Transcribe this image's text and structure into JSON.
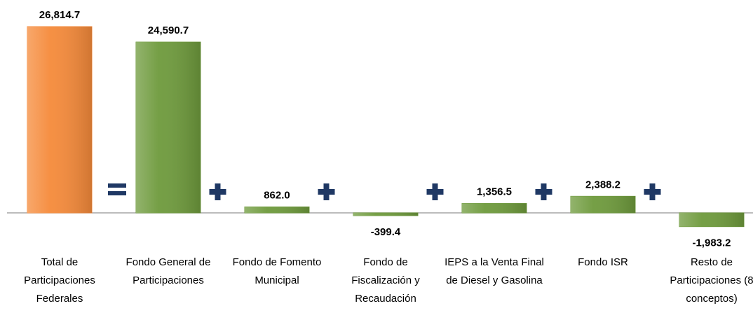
{
  "chart_data": {
    "type": "bar",
    "categories": [
      "Total de Participaciones Federales",
      "Fondo General de Participaciones",
      "Fondo de Fomento Municipal",
      "Fondo de Fiscalización y Recaudación",
      "IEPS a la Venta Final de Diesel y Gasolina",
      "Fondo ISR",
      "Resto de Participaciones (8 conceptos)"
    ],
    "values": [
      26814.7,
      24590.7,
      862.0,
      -399.4,
      1356.5,
      2388.2,
      -1983.2
    ],
    "value_labels": [
      "26,814.7",
      "24,590.7",
      "862.0",
      "-399.4",
      "1,356.5",
      "2,388.2",
      "-1,983.2"
    ],
    "colors": [
      "#f58a3a",
      "#6e9a3c",
      "#6e9a3c",
      "#6e9a3c",
      "#6e9a3c",
      "#6e9a3c",
      "#6e9a3c"
    ]
  }
}
